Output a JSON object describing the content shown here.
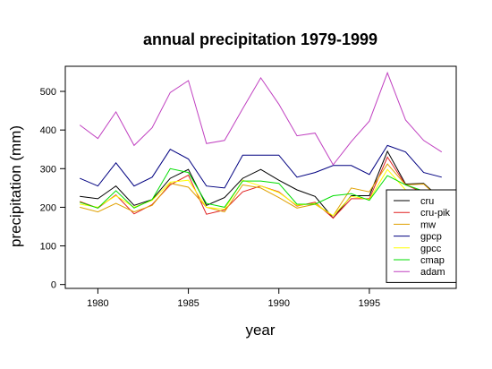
{
  "chart_data": {
    "type": "line",
    "title": "annual precipitation 1979-1999",
    "xlabel": "year",
    "ylabel": "precipitation (mm)",
    "xlim": [
      1978.2,
      1999.8
    ],
    "ylim": [
      -10,
      565
    ],
    "x_ticks": [
      1980,
      1985,
      1990,
      1995
    ],
    "y_ticks": [
      0,
      100,
      200,
      300,
      400,
      500
    ],
    "grid": false,
    "legend_position": "bottom-right",
    "x": [
      1979,
      1980,
      1981,
      1982,
      1983,
      1984,
      1985,
      1986,
      1987,
      1988,
      1989,
      1990,
      1991,
      1992,
      1993,
      1994,
      1995,
      1996,
      1997,
      1998,
      1999
    ],
    "series": [
      {
        "name": "cru",
        "color": "#000000",
        "values": [
          228,
          222,
          255,
          205,
          220,
          275,
          298,
          205,
          225,
          275,
          298,
          270,
          245,
          228,
          172,
          230,
          230,
          345,
          260,
          262,
          220
        ]
      },
      {
        "name": "cru-pik",
        "color": "#e02020",
        "values": [
          215,
          198,
          232,
          183,
          207,
          258,
          283,
          182,
          193,
          240,
          255,
          240,
          203,
          213,
          172,
          222,
          222,
          330,
          258,
          238,
          208
        ]
      },
      {
        "name": "mw",
        "color": "#e0a000",
        "values": [
          200,
          188,
          210,
          188,
          205,
          262,
          252,
          200,
          188,
          258,
          250,
          225,
          198,
          208,
          178,
          250,
          240,
          312,
          258,
          260,
          218
        ]
      },
      {
        "name": "gpcp",
        "color": "#000080",
        "values": [
          275,
          255,
          315,
          255,
          278,
          350,
          325,
          255,
          250,
          335,
          335,
          335,
          278,
          290,
          308,
          308,
          285,
          360,
          343,
          290,
          278
        ]
      },
      {
        "name": "gpcc",
        "color": "#ffff00",
        "values": [
          208,
          200,
          230,
          200,
          218,
          265,
          270,
          200,
          195,
          270,
          255,
          238,
          205,
          210,
          178,
          228,
          220,
          298,
          245,
          238,
          208
        ]
      },
      {
        "name": "cmap",
        "color": "#00dd00",
        "values": [
          213,
          198,
          243,
          198,
          220,
          300,
          290,
          210,
          200,
          268,
          268,
          262,
          208,
          208,
          230,
          235,
          218,
          282,
          258,
          242,
          208
        ]
      },
      {
        "name": "adam",
        "color": "#c040c0",
        "values": [
          413,
          378,
          447,
          360,
          406,
          497,
          528,
          365,
          373,
          455,
          535,
          467,
          385,
          392,
          310,
          370,
          423,
          548,
          426,
          373,
          343
        ]
      }
    ]
  }
}
